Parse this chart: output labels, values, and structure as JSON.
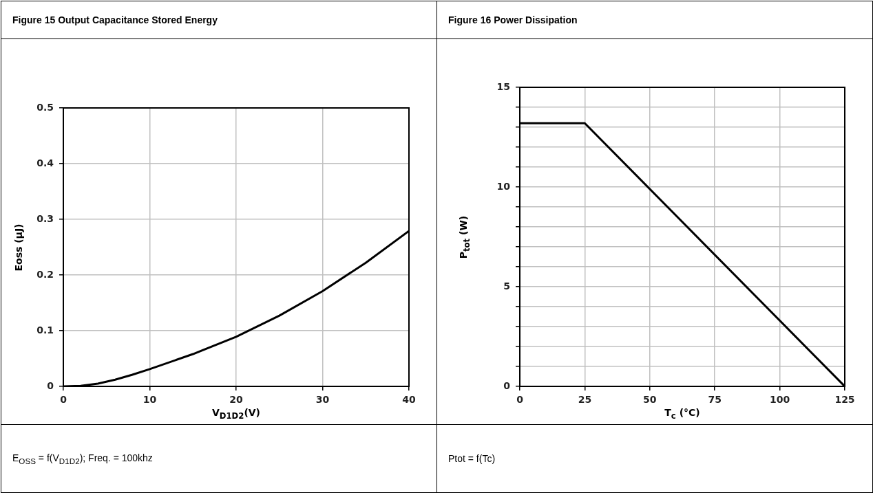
{
  "chart_data": [
    {
      "type": "line",
      "title": "Figure 15 Output Capacitance Stored Energy",
      "xlabel": "V$_{D1D2}$(V)",
      "ylabel": "Eoss (μJ)",
      "annotations": [
        "E$_{OSS}$ = f(V$_{D1D2}$); Freq. = 100khz"
      ],
      "x": [
        0,
        2,
        4,
        6,
        8,
        10,
        15,
        20,
        25,
        30,
        35,
        40
      ],
      "series": [
        {
          "color": "#000000",
          "values": [
            0,
            0.001,
            0.005,
            0.012,
            0.021,
            0.031,
            0.058,
            0.089,
            0.127,
            0.171,
            0.222,
            0.279
          ]
        }
      ],
      "xlim": [
        0,
        40
      ],
      "xticks": [
        0,
        10,
        20,
        30,
        40
      ],
      "ylim": [
        0,
        0.5
      ],
      "yticks": [
        0,
        0.1,
        0.2,
        0.3,
        0.4,
        0.5
      ],
      "grid": true,
      "marker": "none",
      "line_style": "solid"
    },
    {
      "type": "line",
      "title": "Figure 16 Power Dissipation",
      "xlabel": "T$_{c}$ (°C)",
      "ylabel": "P$_{tot}$ (W)",
      "annotations": [
        "Ptot = f(Tc)"
      ],
      "x": [
        0,
        25,
        125
      ],
      "series": [
        {
          "color": "#000000",
          "values": [
            13.2,
            13.2,
            0
          ]
        }
      ],
      "xlim": [
        0,
        125
      ],
      "xticks": [
        0,
        25,
        50,
        75,
        100,
        125
      ],
      "ylim": [
        0,
        15
      ],
      "yticks": [
        0,
        {
          "value": 1,
          "label": null
        },
        {
          "value": 2,
          "label": null
        },
        {
          "value": 3,
          "label": null
        },
        {
          "value": 4,
          "label": null
        },
        5,
        {
          "value": 6,
          "label": null
        },
        {
          "value": 7,
          "label": null
        },
        {
          "value": 8,
          "label": null
        },
        {
          "value": 9,
          "label": null
        },
        10,
        {
          "value": 11,
          "label": null
        },
        {
          "value": 12,
          "label": null
        },
        {
          "value": 13,
          "label": null
        },
        {
          "value": 14,
          "label": null
        },
        15
      ],
      "grid": true,
      "marker": "none",
      "line_style": "solid"
    }
  ]
}
